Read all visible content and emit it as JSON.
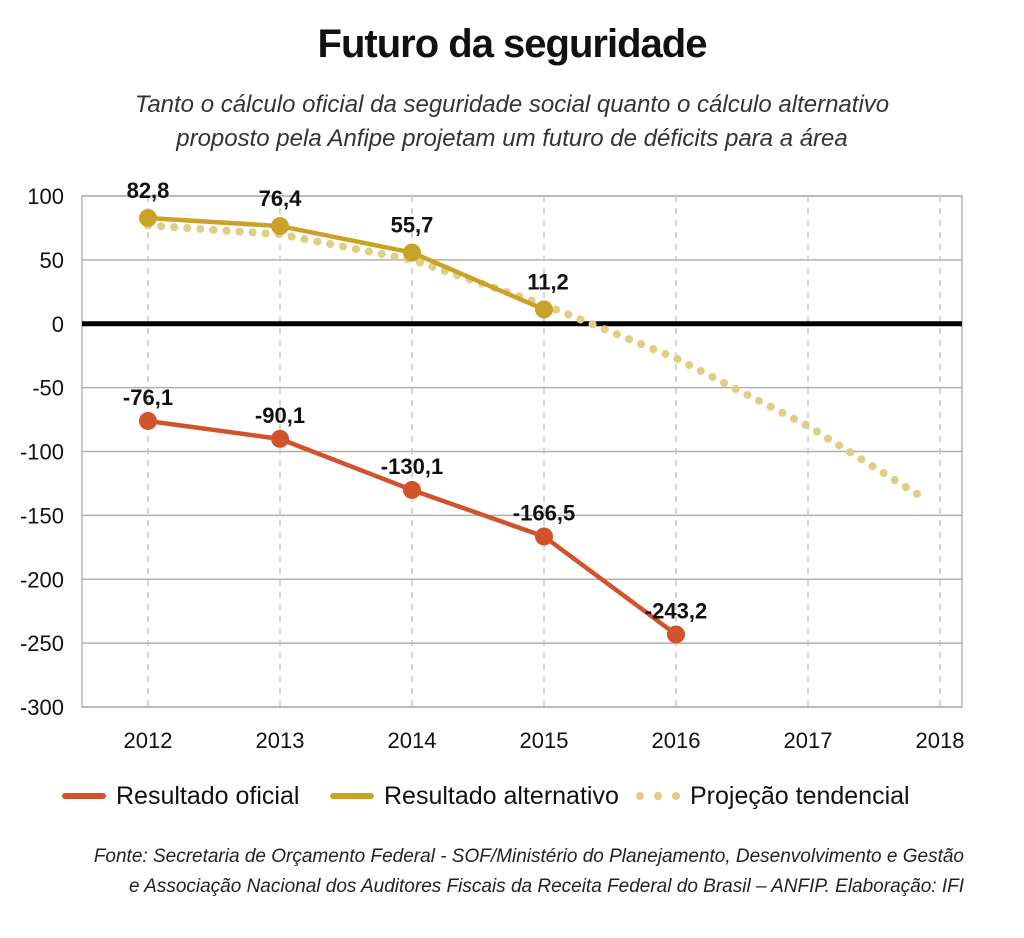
{
  "title": "Futuro da seguridade",
  "subtitle": [
    "Tanto o cálculo oficial da seguridade social quanto o cálculo alternativo",
    "proposto pela Anfipe projetam um futuro de déficits para a área"
  ],
  "source": [
    "Fonte: Secretaria de Orçamento Federal - SOF/Ministério do Planejamento, Desenvolvimento e Gestão",
    "e Associação Nacional dos Auditores Fiscais da Receita Federal do Brasil  – ANFIP. Elaboração: IFI"
  ],
  "legend": [
    {
      "label": "Resultado oficial",
      "style": "line",
      "color": "#d0532b"
    },
    {
      "label": "Resultado alternativo",
      "style": "line",
      "color": "#c9a227"
    },
    {
      "label": "Projeção tendencial",
      "style": "dots",
      "color": "#e2cd84"
    }
  ],
  "chart_data": {
    "type": "line",
    "title": "Futuro da seguridade",
    "xlabel": "",
    "ylabel": "",
    "categories": [
      "2012",
      "2013",
      "2014",
      "2015",
      "2016",
      "2017",
      "2018"
    ],
    "ylim": [
      -300,
      100
    ],
    "yticks": [
      100,
      50,
      0,
      -50,
      -100,
      -150,
      -200,
      -250,
      -300
    ],
    "ytick_labels": [
      "100",
      "50",
      "0",
      "-50",
      "-100",
      "-150",
      "-200",
      "-250",
      "-300"
    ],
    "grid": true,
    "zero_line": true,
    "legend_position": "bottom",
    "series": [
      {
        "name": "Resultado oficial",
        "color": "#d0532b",
        "style": "solid",
        "markers": true,
        "x": [
          "2012",
          "2013",
          "2014",
          "2015",
          "2016"
        ],
        "values": [
          -76.1,
          -90.1,
          -130.1,
          -166.5,
          -243.2
        ],
        "labels": [
          "-76,1",
          "-90,1",
          "-130,1",
          "-166,5",
          "-243,2"
        ]
      },
      {
        "name": "Resultado alternativo",
        "color": "#c9a227",
        "style": "solid",
        "markers": true,
        "x": [
          "2012",
          "2013",
          "2014",
          "2015"
        ],
        "values": [
          82.8,
          76.4,
          55.7,
          11.2
        ],
        "labels": [
          "82,8",
          "76,4",
          "55,7",
          "11,2"
        ]
      },
      {
        "name": "Projeção tendencial",
        "color": "#e2cd84",
        "style": "dotted",
        "markers": false,
        "x": [
          2012,
          2013,
          2014,
          2015,
          2016,
          2017,
          2017.9
        ],
        "values": [
          77,
          70,
          50,
          15,
          -27,
          -80,
          -138
        ]
      }
    ]
  }
}
